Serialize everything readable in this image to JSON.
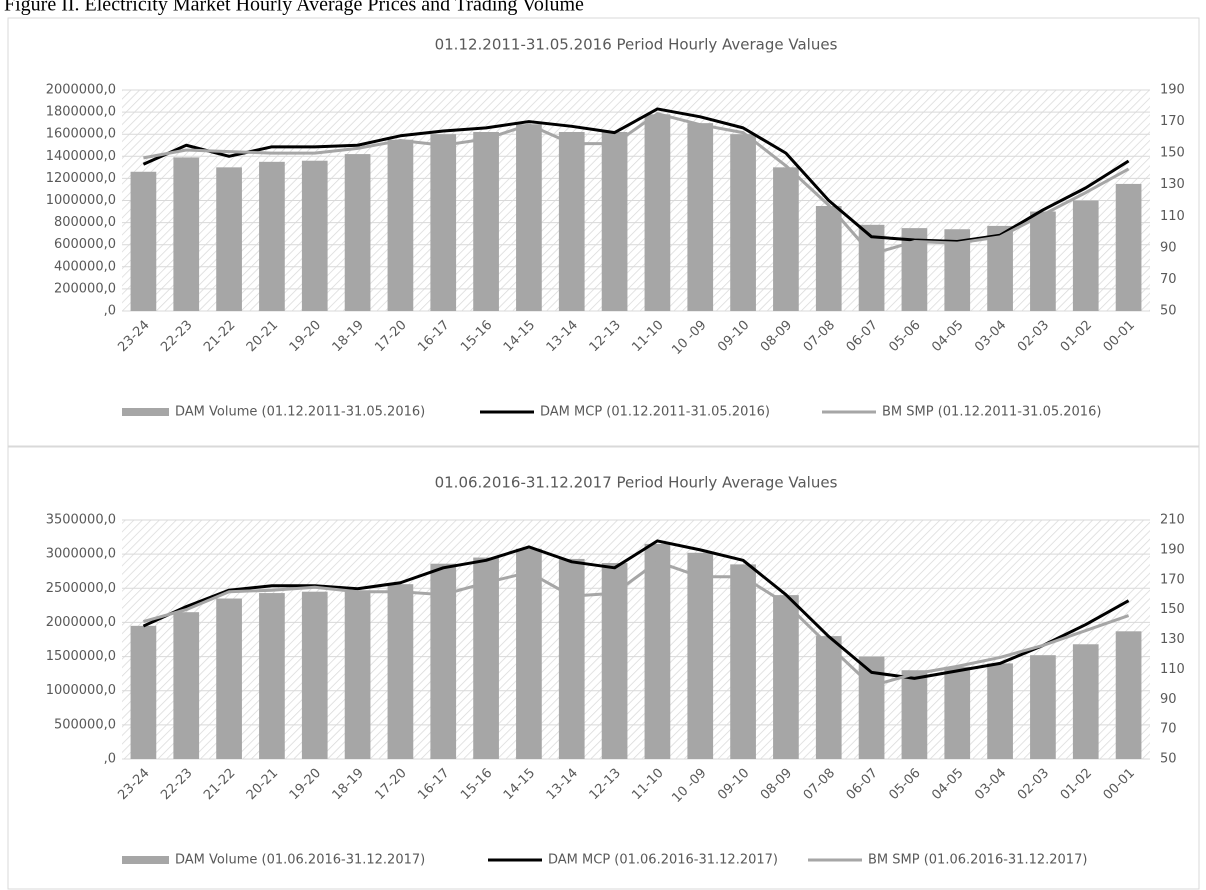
{
  "figure_title": "Figure II. Electricity Market Hourly Average Prices and Trading Volume",
  "chart_data": [
    {
      "type": "bar-line",
      "title": "01.12.2011-31.05.2016 Period Hourly Average Values",
      "categories": [
        "23-24",
        "22-23",
        "21-22",
        "20-21",
        "19-20",
        "18-19",
        "17-20",
        "16-17",
        "15-16",
        "14-15",
        "13-14",
        "12-13",
        "11-10",
        "10 -09",
        "09-10",
        "08-09",
        "07-08",
        "06-07",
        "05-06",
        "04-05",
        "03-04",
        "02-03",
        "01-02",
        "00-01"
      ],
      "series": [
        {
          "name": "DAM Volume  (01.12.2011-31.05.2016)",
          "type": "bar",
          "color": "#a6a6a6",
          "values": [
            1260000,
            1390000,
            1300000,
            1350000,
            1360000,
            1420000,
            1550000,
            1600000,
            1620000,
            1690000,
            1620000,
            1620000,
            1780000,
            1700000,
            1600000,
            1300000,
            950000,
            780000,
            750000,
            740000,
            770000,
            900000,
            1000000,
            1150000
          ]
        },
        {
          "name": "DAM MCP (01.12.2011-31.05.2016)",
          "type": "line",
          "axis": "y2",
          "color": "#000000",
          "values": [
            143,
            155,
            148,
            154,
            154,
            155,
            161,
            164,
            166,
            170,
            167,
            163,
            178,
            173,
            166,
            150,
            120,
            97,
            95,
            94,
            98,
            114,
            128,
            145
          ]
        },
        {
          "name": "BM SMP (01.12.2011-31.05.2016)",
          "type": "line",
          "axis": "y2",
          "color": "#a6a6a6",
          "values": [
            147,
            152,
            151,
            150,
            150,
            153,
            158,
            155,
            159,
            168,
            156,
            156,
            175,
            168,
            163,
            142,
            117,
            86,
            94,
            93,
            97,
            111,
            125,
            140
          ]
        }
      ],
      "ylim": [
        0,
        2000000
      ],
      "yticks": [
        {
          "value": 0,
          "label": ",0"
        },
        {
          "value": 200000,
          "label": "200000,0"
        },
        {
          "value": 400000,
          "label": "400000,0"
        },
        {
          "value": 600000,
          "label": "600000,0"
        },
        {
          "value": 800000,
          "label": "800000,0"
        },
        {
          "value": 1000000,
          "label": "1000000,0"
        },
        {
          "value": 1200000,
          "label": "1200000,0"
        },
        {
          "value": 1400000,
          "label": "1400000,0"
        },
        {
          "value": 1600000,
          "label": "1600000,0"
        },
        {
          "value": 1800000,
          "label": "1800000,0"
        },
        {
          "value": 2000000,
          "label": "2000000,0"
        }
      ],
      "y2lim": [
        50,
        190
      ],
      "y2ticks": [
        50,
        70,
        90,
        110,
        130,
        150,
        170,
        190
      ],
      "legend": "bottom"
    },
    {
      "type": "bar-line",
      "title": "01.06.2016-31.12.2017 Period Hourly Average Values",
      "categories": [
        "23-24",
        "22-23",
        "21-22",
        "20-21",
        "19-20",
        "18-19",
        "17-20",
        "16-17",
        "15-16",
        "14-15",
        "13-14",
        "12-13",
        "11-10",
        "10 -09",
        "09-10",
        "08-09",
        "07-08",
        "06-07",
        "05-06",
        "04-05",
        "03-04",
        "02-03",
        "01-02",
        "00-01"
      ],
      "series": [
        {
          "name": "DAM Volume (01.06.2016-31.12.2017)",
          "type": "bar",
          "color": "#a6a6a6",
          "values": [
            1950000,
            2150000,
            2350000,
            2430000,
            2450000,
            2460000,
            2560000,
            2860000,
            2950000,
            3080000,
            2930000,
            2870000,
            3150000,
            3020000,
            2850000,
            2400000,
            1800000,
            1500000,
            1300000,
            1350000,
            1400000,
            1520000,
            1680000,
            1870000
          ]
        },
        {
          "name": "DAM MCP (01.06.2016-31.12.2017)",
          "type": "line",
          "axis": "y2",
          "color": "#000000",
          "values": [
            139,
            152,
            163,
            166,
            166,
            164,
            168,
            178,
            183,
            192,
            182,
            178,
            196,
            190,
            183,
            160,
            132,
            108,
            104,
            109,
            114,
            126,
            140,
            156
          ]
        },
        {
          "name": "BM SMP (01.06.2016-31.12.2017)",
          "type": "line",
          "axis": "y2",
          "color": "#a6a6a6",
          "values": [
            142,
            150,
            162,
            163,
            165,
            162,
            162,
            160,
            168,
            175,
            159,
            161,
            182,
            172,
            172,
            154,
            126,
            99,
            107,
            112,
            118,
            126,
            136,
            146
          ]
        }
      ],
      "ylim": [
        0,
        3500000
      ],
      "yticks": [
        {
          "value": 0,
          "label": ",0"
        },
        {
          "value": 500000,
          "label": "500000,0"
        },
        {
          "value": 1000000,
          "label": "1000000,0"
        },
        {
          "value": 1500000,
          "label": "1500000,0"
        },
        {
          "value": 2000000,
          "label": "2000000,0"
        },
        {
          "value": 2500000,
          "label": "2500000,0"
        },
        {
          "value": 3000000,
          "label": "3000000,0"
        },
        {
          "value": 3500000,
          "label": "3500000,0"
        }
      ],
      "y2lim": [
        50,
        210
      ],
      "y2ticks": [
        50,
        70,
        90,
        110,
        130,
        150,
        170,
        190,
        210
      ],
      "legend": "bottom"
    }
  ]
}
